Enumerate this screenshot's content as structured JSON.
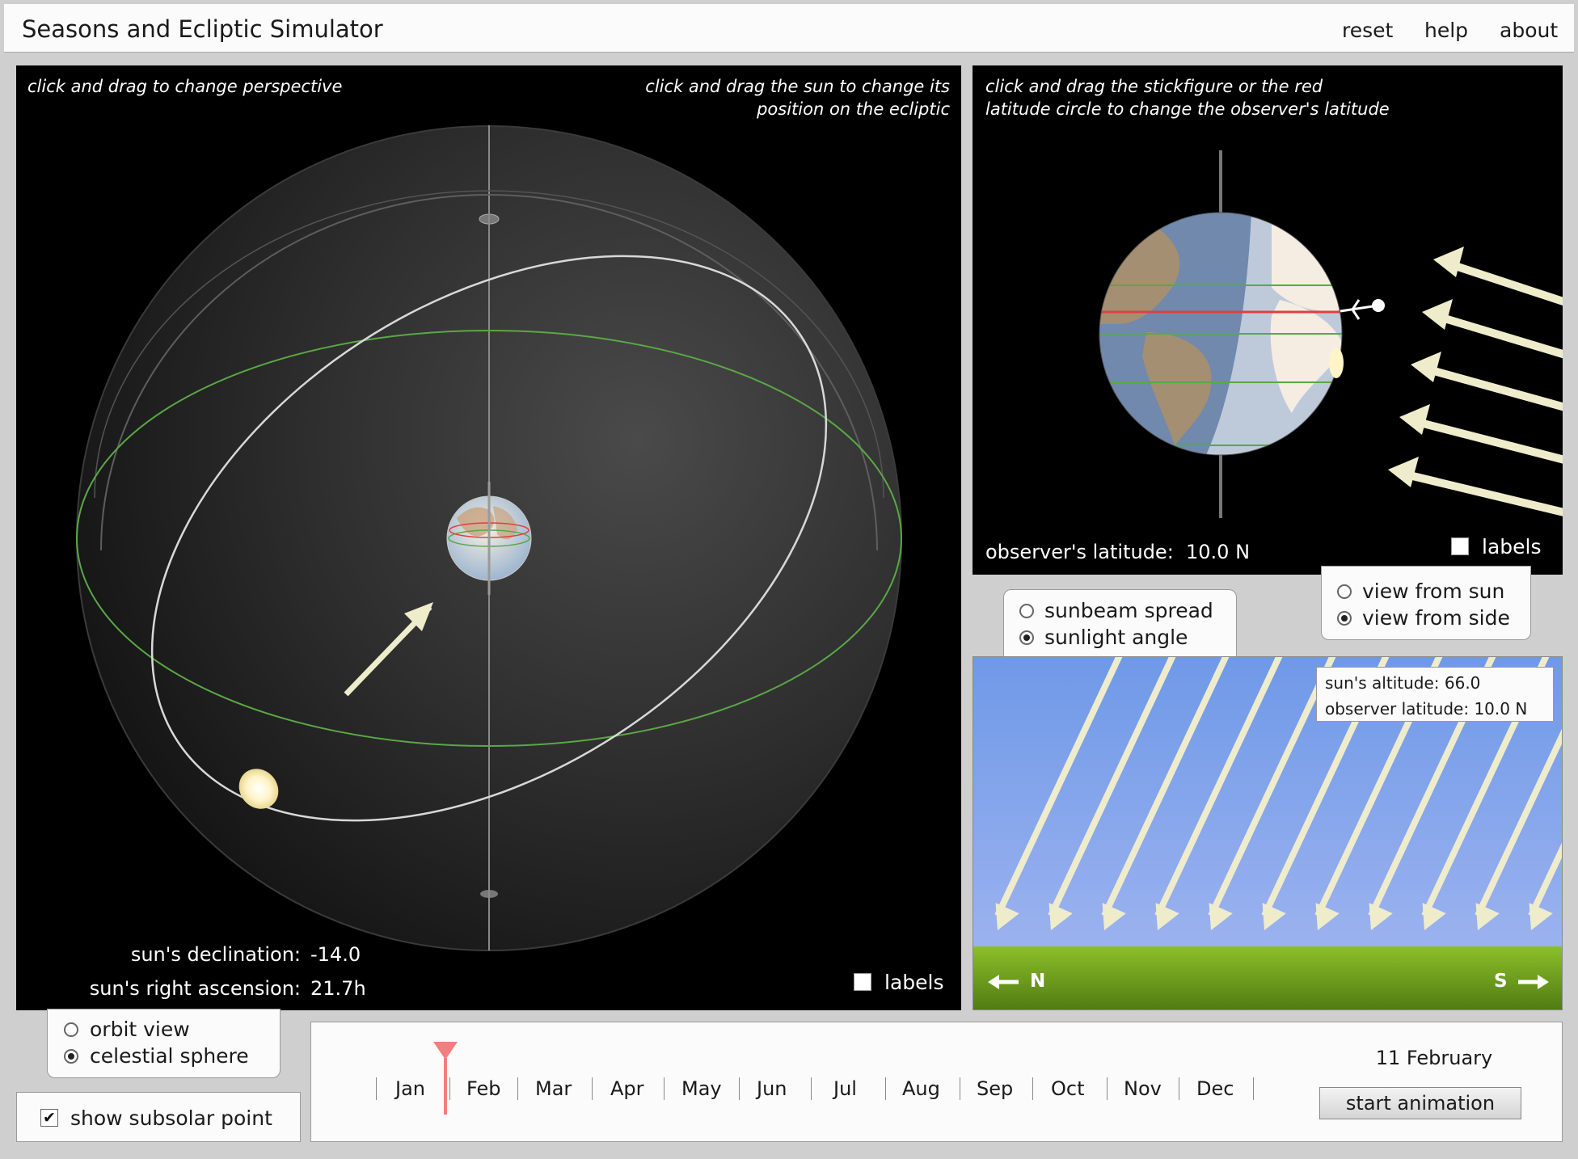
{
  "app": {
    "title": "Seasons and Ecliptic Simulator",
    "menu": [
      "reset",
      "help",
      "about"
    ]
  },
  "celestial_panel": {
    "hint_left": "click and drag to change perspective",
    "hint_right_line1": "click and drag the sun to change its",
    "hint_right_line2": "position on the ecliptic",
    "declination_label": "sun's declination:",
    "declination_value": "-14.0",
    "ra_label": "sun's right ascension:",
    "ra_value": "21.7h",
    "labels_checkbox": "labels",
    "labels_checked": false
  },
  "earth_panel": {
    "hint_line1": "click and drag the stickfigure or the red",
    "hint_line2": "latitude circle to change the observer's latitude",
    "latitude_label": "observer's latitude:",
    "latitude_value": "10.0 N",
    "labels_checkbox": "labels",
    "labels_checked": false
  },
  "view_options": {
    "from_sun": "view from sun",
    "from_side": "view from side",
    "selected": "view from side"
  },
  "sun_options": {
    "spread": "sunbeam spread",
    "angle": "sunlight angle",
    "selected": "sunlight angle"
  },
  "sunlight_panel": {
    "altitude_label": "sun's altitude:",
    "altitude_value": "66.0",
    "obs_label": "observer latitude:",
    "obs_value": "10.0 N",
    "north": "N",
    "south": "S",
    "sun_altitude_deg": 66.0
  },
  "mode_options": {
    "orbit": "orbit view",
    "sphere": "celestial sphere",
    "selected": "celestial sphere"
  },
  "subsolar": {
    "label": "show subsolar point",
    "checked": true
  },
  "timeline": {
    "months": [
      "Jan",
      "Feb",
      "Mar",
      "Apr",
      "May",
      "Jun",
      "Jul",
      "Aug",
      "Sep",
      "Oct",
      "Nov",
      "Dec"
    ],
    "date": "11 February",
    "day_of_year": 42,
    "button": "start animation"
  },
  "colors": {
    "equator": "#5aa845",
    "ecliptic": "#d8d8d8",
    "observer_latitude": "#e04040",
    "sky": "#86a8ec",
    "ground": "#6d9e1c",
    "sunbeam": "#efeccc",
    "date_marker": "#f07f7f"
  }
}
